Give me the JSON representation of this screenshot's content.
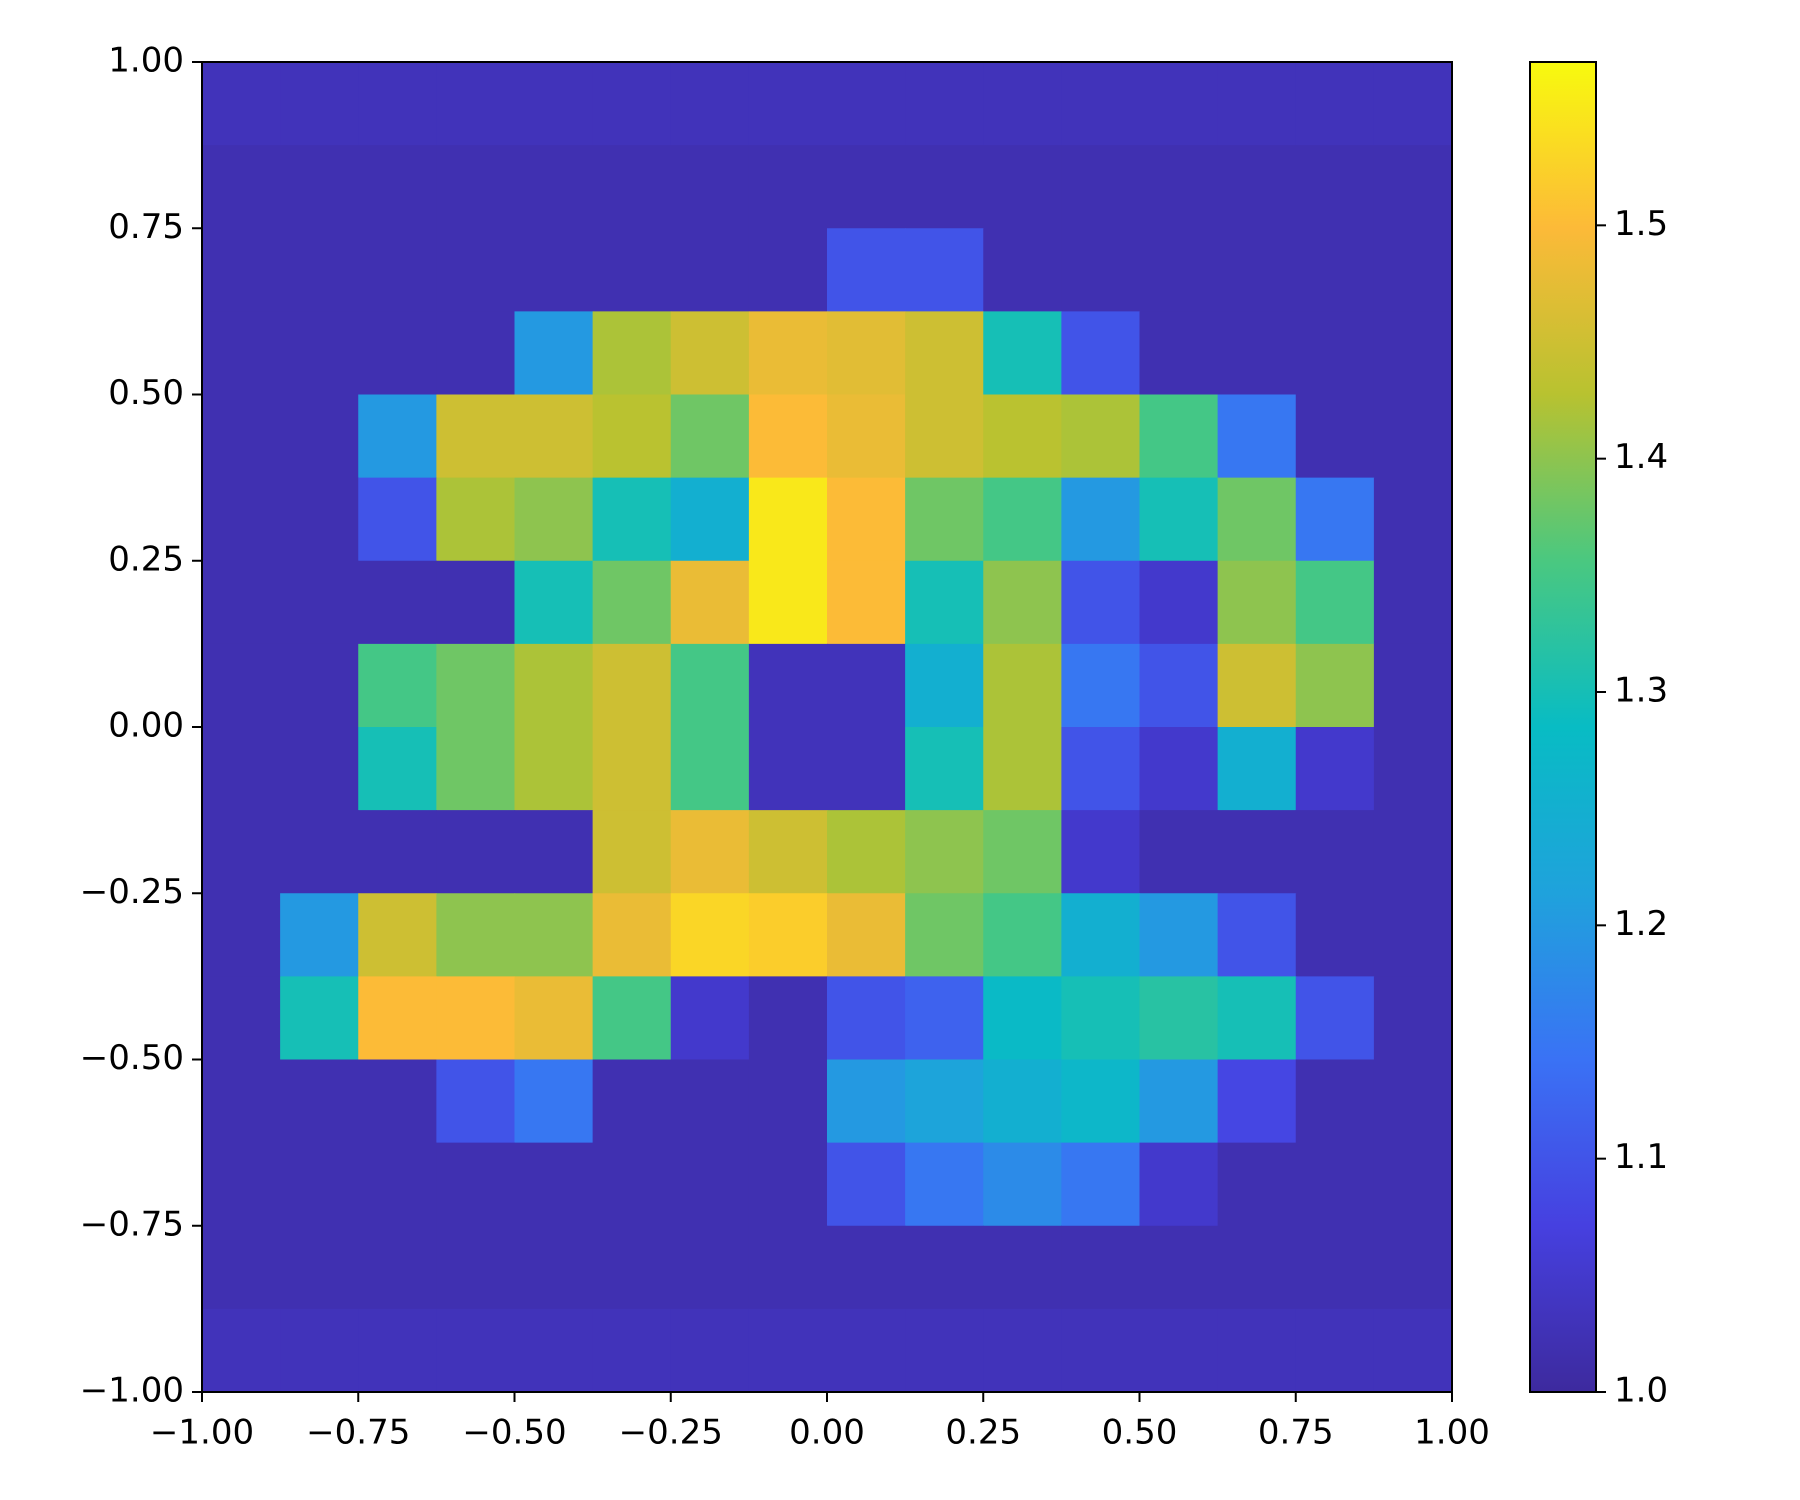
{
  "chart_data": {
    "type": "heatmap",
    "xlim": [
      -1,
      1
    ],
    "ylim": [
      -1,
      1
    ],
    "xticks": [
      {
        "value": -1,
        "label": "−1.00"
      },
      {
        "value": -0.75,
        "label": "−0.75"
      },
      {
        "value": -0.5,
        "label": "−0.50"
      },
      {
        "value": -0.25,
        "label": "−0.25"
      },
      {
        "value": 0,
        "label": "0.00"
      },
      0.25,
      {
        "value": 0.5,
        "label": "0.50"
      },
      0.75,
      {
        "value": 1,
        "label": "1.00"
      }
    ],
    "yticks": [
      {
        "value": -1,
        "label": "−1.00"
      },
      {
        "value": -0.75,
        "label": "−0.75"
      },
      {
        "value": -0.5,
        "label": "−0.50"
      },
      {
        "value": -0.25,
        "label": "−0.25"
      },
      {
        "value": 0,
        "label": "0.00"
      },
      0.25,
      {
        "value": 0.5,
        "label": "0.50"
      },
      0.75,
      {
        "value": 1,
        "label": "1.00"
      }
    ],
    "clim": [
      1.0,
      1.57
    ],
    "cticks": [
      {
        "value": 1,
        "label": "1.0"
      },
      1.1,
      1.2,
      1.3,
      1.4,
      1.5
    ],
    "colormap": [
      "#3d2a9e",
      "#4640e0",
      "#3a72f5",
      "#1fa2dc",
      "#08bcc4",
      "#4ac880",
      "#b8c230",
      "#fcba38",
      "#f8fa0e"
    ],
    "z": [
      [
        1.03,
        1.03,
        1.03,
        1.03,
        1.03,
        1.03,
        1.03,
        1.03,
        1.03,
        1.03,
        1.03,
        1.03,
        1.03,
        1.03,
        1.03,
        1.03
      ],
      [
        1.02,
        1.02,
        1.02,
        1.02,
        1.02,
        1.02,
        1.02,
        1.02,
        1.02,
        1.02,
        1.02,
        1.02,
        1.02,
        1.02,
        1.02,
        1.02
      ],
      [
        1.02,
        1.02,
        1.02,
        1.02,
        1.02,
        1.02,
        1.02,
        1.02,
        1.1,
        1.1,
        1.02,
        1.02,
        1.02,
        1.02,
        1.02,
        1.02
      ],
      [
        1.02,
        1.02,
        1.02,
        1.02,
        1.2,
        1.42,
        1.45,
        1.48,
        1.47,
        1.45,
        1.3,
        1.1,
        1.02,
        1.02,
        1.02,
        1.02
      ],
      [
        1.02,
        1.02,
        1.2,
        1.45,
        1.45,
        1.43,
        1.38,
        1.5,
        1.48,
        1.45,
        1.43,
        1.42,
        1.35,
        1.15,
        1.02,
        1.02
      ],
      [
        1.02,
        1.02,
        1.1,
        1.42,
        1.4,
        1.3,
        1.25,
        1.55,
        1.5,
        1.38,
        1.35,
        1.2,
        1.3,
        1.38,
        1.15,
        1.02
      ],
      [
        1.02,
        1.02,
        1.02,
        1.02,
        1.3,
        1.38,
        1.48,
        1.55,
        1.5,
        1.3,
        1.4,
        1.1,
        1.05,
        1.4,
        1.35,
        1.02
      ],
      [
        1.02,
        1.02,
        1.35,
        1.38,
        1.42,
        1.45,
        1.35,
        1.03,
        1.03,
        1.25,
        1.42,
        1.15,
        1.1,
        1.45,
        1.4,
        1.02
      ],
      [
        1.02,
        1.02,
        1.3,
        1.38,
        1.42,
        1.45,
        1.35,
        1.03,
        1.03,
        1.3,
        1.42,
        1.1,
        1.05,
        1.25,
        1.05,
        1.02
      ],
      [
        1.02,
        1.02,
        1.02,
        1.02,
        1.02,
        1.45,
        1.48,
        1.45,
        1.42,
        1.4,
        1.38,
        1.05,
        1.02,
        1.02,
        1.02,
        1.02
      ],
      [
        1.02,
        1.2,
        1.45,
        1.4,
        1.4,
        1.48,
        1.53,
        1.52,
        1.48,
        1.38,
        1.35,
        1.25,
        1.2,
        1.1,
        1.02,
        1.02
      ],
      [
        1.02,
        1.3,
        1.5,
        1.5,
        1.48,
        1.35,
        1.05,
        1.02,
        1.1,
        1.12,
        1.28,
        1.3,
        1.32,
        1.3,
        1.1,
        1.02
      ],
      [
        1.02,
        1.02,
        1.02,
        1.1,
        1.15,
        1.02,
        1.02,
        1.02,
        1.2,
        1.22,
        1.25,
        1.27,
        1.2,
        1.08,
        1.02,
        1.02
      ],
      [
        1.02,
        1.02,
        1.02,
        1.02,
        1.02,
        1.02,
        1.02,
        1.02,
        1.1,
        1.15,
        1.18,
        1.15,
        1.05,
        1.02,
        1.02,
        1.02
      ],
      [
        1.02,
        1.02,
        1.02,
        1.02,
        1.02,
        1.02,
        1.02,
        1.02,
        1.02,
        1.02,
        1.02,
        1.02,
        1.02,
        1.02,
        1.02,
        1.02
      ],
      [
        1.03,
        1.03,
        1.03,
        1.03,
        1.03,
        1.03,
        1.03,
        1.03,
        1.03,
        1.03,
        1.03,
        1.03,
        1.03,
        1.03,
        1.03,
        1.03
      ]
    ]
  }
}
